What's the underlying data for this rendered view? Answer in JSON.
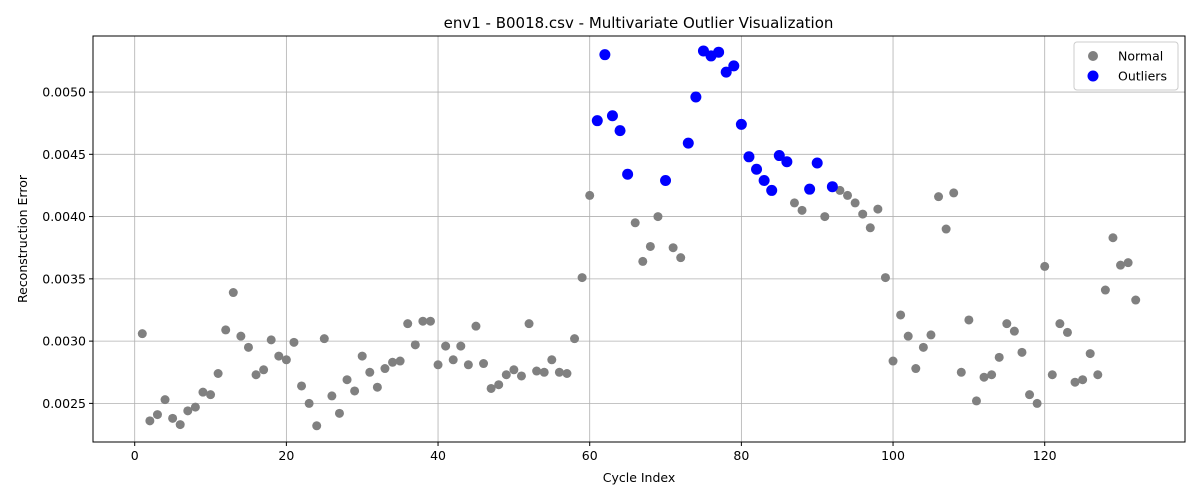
{
  "chart_data": {
    "type": "scatter",
    "title": "env1 - B0018.csv - Multivariate Outlier Visualization",
    "xlabel": "Cycle Index",
    "ylabel": "Reconstruction Error",
    "xlim": [
      -5.5,
      138.5
    ],
    "ylim": [
      0.00219,
      0.00545
    ],
    "x_ticks": [
      0,
      20,
      40,
      60,
      80,
      100,
      120
    ],
    "x_tick_labels": [
      "0",
      "20",
      "40",
      "60",
      "80",
      "100",
      "120"
    ],
    "y_ticks": [
      0.0025,
      0.003,
      0.0035,
      0.004,
      0.0045,
      0.005
    ],
    "y_tick_labels": [
      "0.0025",
      "0.0030",
      "0.0035",
      "0.0040",
      "0.0045",
      "0.0050"
    ],
    "grid": true,
    "legend_position": "top-right",
    "series": [
      {
        "name": "Normal",
        "color": "#808080",
        "points": [
          [
            1,
            0.00306
          ],
          [
            2,
            0.00236
          ],
          [
            3,
            0.00241
          ],
          [
            4,
            0.00253
          ],
          [
            5,
            0.00238
          ],
          [
            6,
            0.00233
          ],
          [
            7,
            0.00244
          ],
          [
            8,
            0.00247
          ],
          [
            9,
            0.00259
          ],
          [
            10,
            0.00257
          ],
          [
            11,
            0.00274
          ],
          [
            12,
            0.00309
          ],
          [
            13,
            0.00339
          ],
          [
            14,
            0.00304
          ],
          [
            15,
            0.00295
          ],
          [
            16,
            0.00273
          ],
          [
            17,
            0.00277
          ],
          [
            18,
            0.00301
          ],
          [
            19,
            0.00288
          ],
          [
            20,
            0.00285
          ],
          [
            21,
            0.00299
          ],
          [
            22,
            0.00264
          ],
          [
            23,
            0.0025
          ],
          [
            24,
            0.00232
          ],
          [
            25,
            0.00302
          ],
          [
            26,
            0.00256
          ],
          [
            27,
            0.00242
          ],
          [
            28,
            0.00269
          ],
          [
            29,
            0.0026
          ],
          [
            30,
            0.00288
          ],
          [
            31,
            0.00275
          ],
          [
            32,
            0.00263
          ],
          [
            33,
            0.00278
          ],
          [
            34,
            0.00283
          ],
          [
            35,
            0.00284
          ],
          [
            36,
            0.00314
          ],
          [
            37,
            0.00297
          ],
          [
            38,
            0.00316
          ],
          [
            39,
            0.00316
          ],
          [
            40,
            0.00281
          ],
          [
            41,
            0.00296
          ],
          [
            42,
            0.00285
          ],
          [
            43,
            0.00296
          ],
          [
            44,
            0.00281
          ],
          [
            45,
            0.00312
          ],
          [
            46,
            0.00282
          ],
          [
            47,
            0.00262
          ],
          [
            48,
            0.00265
          ],
          [
            49,
            0.00273
          ],
          [
            50,
            0.00277
          ],
          [
            51,
            0.00272
          ],
          [
            52,
            0.00314
          ],
          [
            53,
            0.00276
          ],
          [
            54,
            0.00275
          ],
          [
            55,
            0.00285
          ],
          [
            56,
            0.00275
          ],
          [
            57,
            0.00274
          ],
          [
            58,
            0.00302
          ],
          [
            59,
            0.00351
          ],
          [
            60,
            0.00417
          ],
          [
            66,
            0.00395
          ],
          [
            67,
            0.00364
          ],
          [
            68,
            0.00376
          ],
          [
            69,
            0.004
          ],
          [
            71,
            0.00375
          ],
          [
            72,
            0.00367
          ],
          [
            87,
            0.00411
          ],
          [
            88,
            0.00405
          ],
          [
            91,
            0.004
          ],
          [
            93,
            0.00421
          ],
          [
            94,
            0.00417
          ],
          [
            95,
            0.00411
          ],
          [
            96,
            0.00402
          ],
          [
            97,
            0.00391
          ],
          [
            98,
            0.00406
          ],
          [
            99,
            0.00351
          ],
          [
            100,
            0.00284
          ],
          [
            101,
            0.00321
          ],
          [
            102,
            0.00304
          ],
          [
            103,
            0.00278
          ],
          [
            104,
            0.00295
          ],
          [
            105,
            0.00305
          ],
          [
            106,
            0.00416
          ],
          [
            107,
            0.0039
          ],
          [
            108,
            0.00419
          ],
          [
            109,
            0.00275
          ],
          [
            110,
            0.00317
          ],
          [
            111,
            0.00252
          ],
          [
            112,
            0.00271
          ],
          [
            113,
            0.00273
          ],
          [
            114,
            0.00287
          ],
          [
            115,
            0.00314
          ],
          [
            116,
            0.00308
          ],
          [
            117,
            0.00291
          ],
          [
            118,
            0.00257
          ],
          [
            119,
            0.0025
          ],
          [
            120,
            0.0036
          ],
          [
            121,
            0.00273
          ],
          [
            122,
            0.00314
          ],
          [
            123,
            0.00307
          ],
          [
            124,
            0.00267
          ],
          [
            125,
            0.00269
          ],
          [
            126,
            0.0029
          ],
          [
            127,
            0.00273
          ],
          [
            128,
            0.00341
          ],
          [
            129,
            0.00383
          ],
          [
            130,
            0.00361
          ],
          [
            131,
            0.00363
          ],
          [
            132,
            0.00333
          ]
        ]
      },
      {
        "name": "Outliers",
        "color": "#0000ff",
        "points": [
          [
            61,
            0.00477
          ],
          [
            62,
            0.0053
          ],
          [
            63,
            0.00481
          ],
          [
            64,
            0.00469
          ],
          [
            65,
            0.00434
          ],
          [
            70,
            0.00429
          ],
          [
            73,
            0.00459
          ],
          [
            74,
            0.00496
          ],
          [
            75,
            0.00533
          ],
          [
            76,
            0.00529
          ],
          [
            77,
            0.00532
          ],
          [
            78,
            0.00516
          ],
          [
            79,
            0.00521
          ],
          [
            80,
            0.00474
          ],
          [
            81,
            0.00448
          ],
          [
            82,
            0.00438
          ],
          [
            83,
            0.00429
          ],
          [
            84,
            0.00421
          ],
          [
            85,
            0.00449
          ],
          [
            86,
            0.00444
          ],
          [
            89,
            0.00422
          ],
          [
            90,
            0.00443
          ],
          [
            92,
            0.00424
          ]
        ]
      }
    ]
  }
}
